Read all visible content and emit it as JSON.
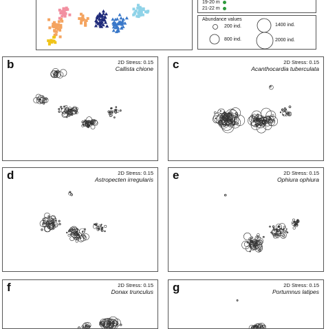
{
  "colors": {
    "frame": "#555555",
    "circle_stroke": "#333333",
    "depth_19_20": "#2e9a3c",
    "depth_21_22": "#2e9a3c",
    "scatter_orange": "#f4a460",
    "scatter_yellow": "#f0c419",
    "scatter_navy": "#1f2a7a",
    "scatter_blue": "#3a78c9",
    "scatter_cyan": "#8fd3e8",
    "scatter_pink": "#f28fa0"
  },
  "panel_a": {
    "legend_depth": [
      "19-20 m",
      "21-22 m"
    ],
    "legend_abundance": {
      "title": "Abundance values",
      "items": [
        "200 ind.",
        "800 ind.",
        "1400 ind.",
        "2000 ind."
      ]
    }
  },
  "panels": [
    {
      "letter": "b",
      "stress": "2D Stress: 0.15",
      "species": "Callista chione"
    },
    {
      "letter": "c",
      "stress": "2D Stress: 0.15",
      "species": "Acanthocardia tuberculata"
    },
    {
      "letter": "d",
      "stress": "2D Stress: 0.15",
      "species": "Astropecten irregularis"
    },
    {
      "letter": "e",
      "stress": "2D Stress: 0.15",
      "species": "Ophiura ophiura"
    },
    {
      "letter": "f",
      "stress": "2D Stress: 0.15",
      "species": "Donax trunculus"
    },
    {
      "letter": "g",
      "stress": "2D Stress: 0.15",
      "species": "Portumnus latipes"
    }
  ]
}
